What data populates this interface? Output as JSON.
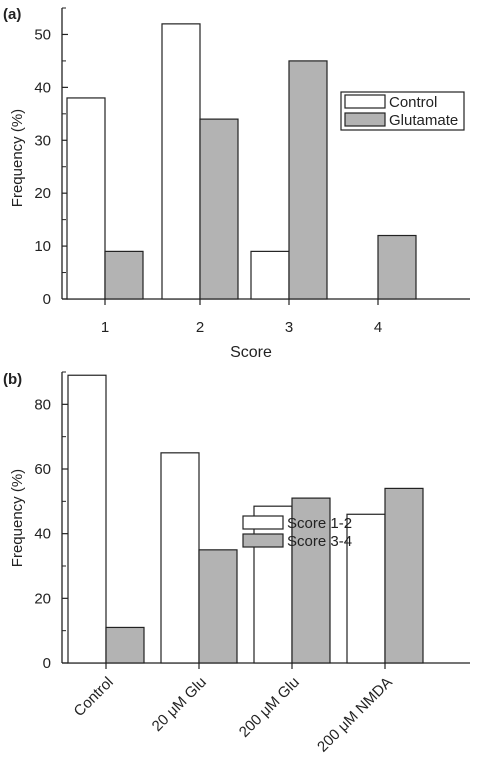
{
  "chart_data": [
    {
      "panel_label": "(a)",
      "type": "bar",
      "categories": [
        "1",
        "2",
        "3",
        "4"
      ],
      "series": [
        {
          "name": "Control",
          "values": [
            38,
            52,
            9,
            0
          ],
          "color": "#ffffff"
        },
        {
          "name": "Glutamate",
          "values": [
            9,
            34,
            45,
            12
          ],
          "color": "#b3b3b3"
        }
      ],
      "xlabel": "Score",
      "ylabel": "Frequency (%)",
      "ylim": [
        0,
        55
      ],
      "yticks": [
        0,
        10,
        20,
        30,
        40,
        50
      ],
      "grid": false,
      "legend_position": "top-right"
    },
    {
      "panel_label": "(b)",
      "type": "bar",
      "categories": [
        "Control",
        "20 μM Glu",
        "200 μM Glu",
        "200 μM NMDA"
      ],
      "series": [
        {
          "name": "Score 1-2",
          "values": [
            89,
            65,
            48.5,
            46
          ],
          "color": "#ffffff"
        },
        {
          "name": "Score 3-4",
          "values": [
            11,
            35,
            51,
            54
          ],
          "color": "#b3b3b3"
        }
      ],
      "xlabel": "",
      "ylabel": "Frequency (%)",
      "ylim": [
        0,
        90
      ],
      "yticks": [
        0,
        20,
        40,
        60,
        80
      ],
      "grid": false,
      "legend_position": "top-right"
    }
  ]
}
